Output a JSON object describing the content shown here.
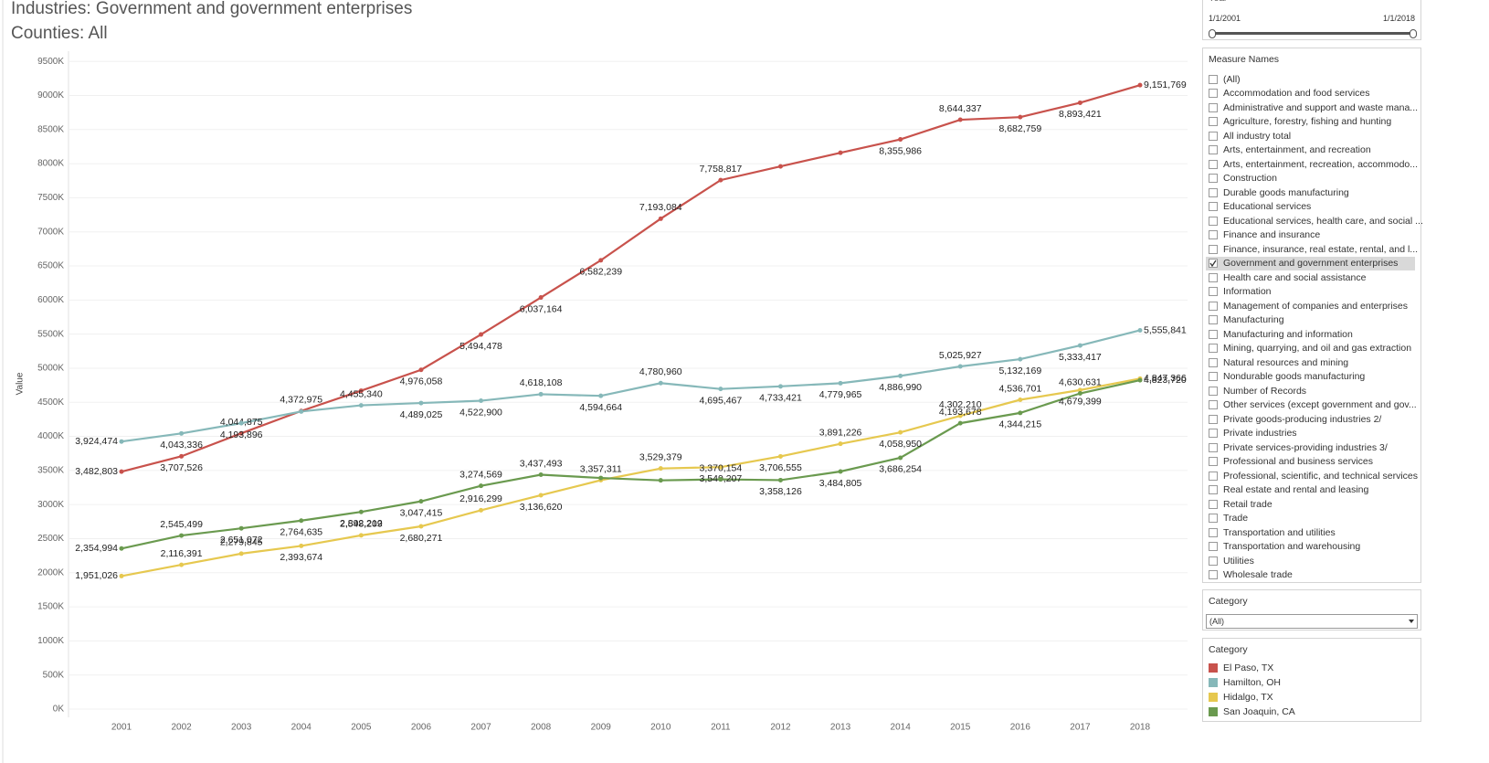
{
  "chart_data": {
    "type": "line",
    "title": "Industries: Government and government enterprises",
    "subtitle": "Counties:  All",
    "y_label": "Value",
    "categories": [
      "2001",
      "2002",
      "2003",
      "2004",
      "2005",
      "2006",
      "2007",
      "2008",
      "2009",
      "2010",
      "2011",
      "2012",
      "2013",
      "2014",
      "2015",
      "2016",
      "2017",
      "2018"
    ],
    "series": [
      {
        "name": "El Paso, TX",
        "color": "#c8524c",
        "values": [
          3482803,
          3707526,
          4044875,
          4372975,
          4670000,
          4976058,
          5494478,
          6037164,
          6582239,
          7193084,
          7758817,
          7960000,
          8160000,
          8355986,
          8644337,
          8682759,
          8893421,
          9151769
        ],
        "value_labels": [
          "3,482,803",
          "3,707,526",
          "4,044,875",
          "4,372,975",
          null,
          "4,976,058",
          "5,494,478",
          "6,037,164",
          "6,582,239",
          "7,193,084",
          "7,758,817",
          null,
          null,
          "8,355,986",
          "8,644,337",
          "8,682,759",
          "8,893,421",
          "9,151,769"
        ]
      },
      {
        "name": "Hamilton, OH",
        "color": "#86b8b9",
        "values": [
          3924474,
          4043336,
          4193896,
          4365000,
          4455340,
          4489025,
          4522900,
          4618108,
          4594664,
          4780960,
          4695467,
          4733421,
          4779965,
          4886990,
          5025927,
          5132169,
          5333417,
          5555841
        ],
        "value_labels": [
          "3,924,474",
          "4,043,336",
          "4,193,896",
          null,
          "4,455,340",
          "4,489,025",
          "4,522,900",
          "4,618,108",
          "4,594,664",
          "4,780,960",
          "4,695,467",
          "4,733,421",
          "4,779,965",
          "4,886,990",
          "5,025,927",
          "5,132,169",
          "5,333,417",
          "5,555,841"
        ]
      },
      {
        "name": "Hidalgo, TX",
        "color": "#e6c84f",
        "values": [
          1951026,
          2116391,
          2279845,
          2393674,
          2548209,
          2680271,
          2916299,
          3136620,
          3357311,
          3529379,
          3549207,
          3706555,
          3891226,
          4058950,
          4302210,
          4536701,
          4679399,
          4847366
        ],
        "value_labels": [
          "1,951,026",
          "2,116,391",
          "2,279,845",
          "2,393,674",
          "2,548,209",
          "2,680,271",
          "2,916,299",
          "3,136,620",
          "3,357,311",
          "3,529,379",
          "3,549,207",
          "3,706,555",
          "3,891,226",
          "4,058,950",
          "4,302,210",
          "4,536,701",
          "4,679,399",
          "4,847,366"
        ]
      },
      {
        "name": "San Joaquin, CA",
        "color": "#6a9a4f",
        "values": [
          2354994,
          2545499,
          2651072,
          2764635,
          2892212,
          3047415,
          3274569,
          3437493,
          3390000,
          3355000,
          3370154,
          3358126,
          3484805,
          3686254,
          4193678,
          4344215,
          4630631,
          4823720
        ],
        "value_labels": [
          "2,354,994",
          "2,545,499",
          "2,651,072",
          "2,764,635",
          "2,892,212",
          "3,047,415",
          "3,274,569",
          "3,437,493",
          null,
          null,
          "3,370,154",
          "3,358,126",
          "3,484,805",
          "3,686,254",
          "4,193,678",
          "4,344,215",
          "4,630,631",
          "4,823,720"
        ]
      }
    ],
    "ylim": [
      0,
      9650000
    ],
    "yticks": [
      {
        "value": 0,
        "label": "0K"
      },
      {
        "value": 500000,
        "label": "500K"
      },
      {
        "value": 1000000,
        "label": "1000K"
      },
      {
        "value": 1500000,
        "label": "1500K"
      },
      {
        "value": 2000000,
        "label": "2000K"
      },
      {
        "value": 2500000,
        "label": "2500K"
      },
      {
        "value": 3000000,
        "label": "3000K"
      },
      {
        "value": 3500000,
        "label": "3500K"
      },
      {
        "value": 4000000,
        "label": "4000K"
      },
      {
        "value": 4500000,
        "label": "4500K"
      },
      {
        "value": 5000000,
        "label": "5000K"
      },
      {
        "value": 5500000,
        "label": "5500K"
      },
      {
        "value": 6000000,
        "label": "6000K"
      },
      {
        "value": 6500000,
        "label": "6500K"
      },
      {
        "value": 7000000,
        "label": "7000K"
      },
      {
        "value": 7500000,
        "label": "7500K"
      },
      {
        "value": 8000000,
        "label": "8000K"
      },
      {
        "value": 8500000,
        "label": "8500K"
      },
      {
        "value": 9000000,
        "label": "9000K"
      },
      {
        "value": 9500000,
        "label": "9500K"
      }
    ],
    "grid": true
  },
  "sidebar": {
    "year_filter": {
      "title": "Year",
      "start": "1/1/2001",
      "end": "1/1/2018"
    },
    "measure_names": {
      "title": "Measure Names",
      "items": [
        {
          "label": "(All)",
          "checked": false
        },
        {
          "label": "Accommodation and food services",
          "checked": false
        },
        {
          "label": "Administrative and support and waste mana...",
          "checked": false
        },
        {
          "label": "Agriculture, forestry, fishing and hunting",
          "checked": false
        },
        {
          "label": "All industry total",
          "checked": false
        },
        {
          "label": "Arts, entertainment, and recreation",
          "checked": false
        },
        {
          "label": "Arts, entertainment, recreation, accommodo...",
          "checked": false
        },
        {
          "label": "Construction",
          "checked": false
        },
        {
          "label": "Durable goods manufacturing",
          "checked": false
        },
        {
          "label": "Educational services",
          "checked": false
        },
        {
          "label": "Educational services, health care, and social ...",
          "checked": false
        },
        {
          "label": "Finance and insurance",
          "checked": false
        },
        {
          "label": "Finance, insurance, real estate, rental, and l...",
          "checked": false
        },
        {
          "label": "Government and government enterprises",
          "checked": true
        },
        {
          "label": "Health care and social assistance",
          "checked": false
        },
        {
          "label": "Information",
          "checked": false
        },
        {
          "label": "Management of companies and enterprises",
          "checked": false
        },
        {
          "label": "Manufacturing",
          "checked": false
        },
        {
          "label": "Manufacturing and information",
          "checked": false
        },
        {
          "label": "Mining, quarrying, and oil and gas extraction",
          "checked": false
        },
        {
          "label": "Natural resources and mining",
          "checked": false
        },
        {
          "label": "Nondurable goods manufacturing",
          "checked": false
        },
        {
          "label": "Number of Records",
          "checked": false
        },
        {
          "label": "Other services (except government and gov...",
          "checked": false
        },
        {
          "label": "Private goods-producing industries 2/",
          "checked": false
        },
        {
          "label": "Private industries",
          "checked": false
        },
        {
          "label": "Private services-providing industries 3/",
          "checked": false
        },
        {
          "label": "Professional and business services",
          "checked": false
        },
        {
          "label": "Professional, scientific, and technical services",
          "checked": false
        },
        {
          "label": "Real estate and rental and leasing",
          "checked": false
        },
        {
          "label": "Retail trade",
          "checked": false
        },
        {
          "label": "Trade",
          "checked": false
        },
        {
          "label": "Transportation and utilities",
          "checked": false
        },
        {
          "label": "Transportation and warehousing",
          "checked": false
        },
        {
          "label": "Utilities",
          "checked": false
        },
        {
          "label": "Wholesale trade",
          "checked": false
        }
      ]
    },
    "category_filter": {
      "title": "Category",
      "value": "(All)"
    },
    "legend_title": "Category"
  }
}
